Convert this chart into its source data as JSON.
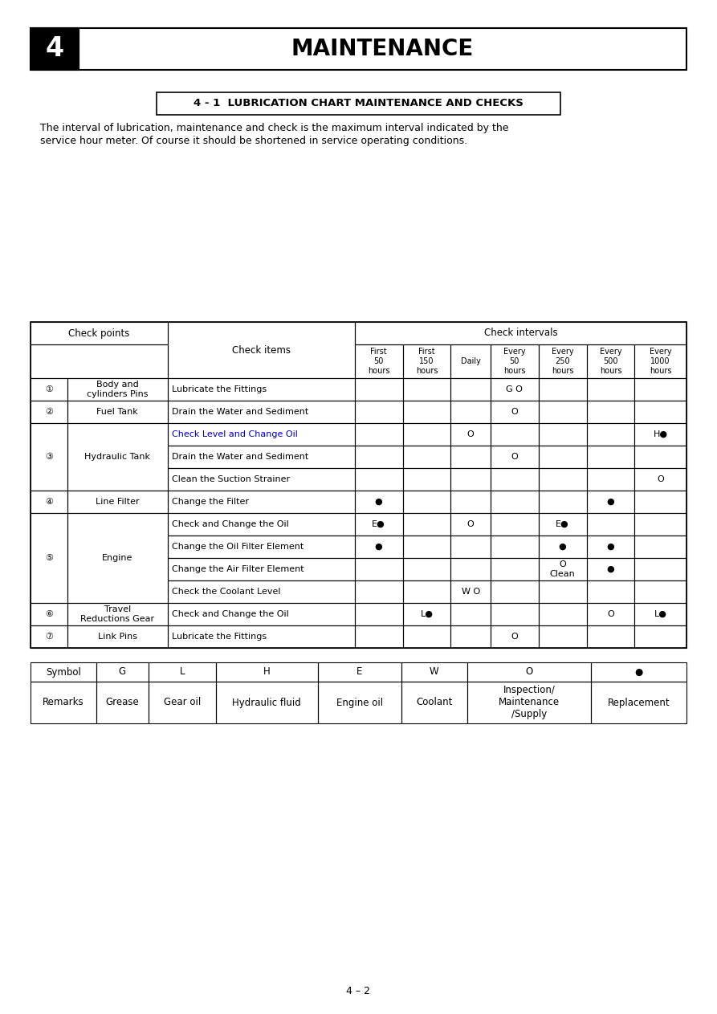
{
  "page_title": "MAINTENANCE",
  "chapter_num": "4",
  "section_title": "4 - 1  LUBRICATION CHART MAINTENANCE AND CHECKS",
  "intro_line1": "The interval of lubrication, maintenance and check is the maximum interval indicated by the",
  "intro_line2": "service hour meter. Of course it should be shortened in service operating conditions.",
  "table_headers": {
    "check_points": "Check points",
    "check_items": "Check items",
    "check_intervals": "Check intervals",
    "intervals": [
      "First\n50\nhours",
      "First\n150\nhours",
      "Daily",
      "Every\n50\nhours",
      "Every\n250\nhours",
      "Every\n500\nhours",
      "Every\n1000\nhours"
    ]
  },
  "table_rows": [
    {
      "num": "①",
      "point": "Body and\ncylinders Pins",
      "point_span": 1,
      "item": "Lubricate the Fittings",
      "item_color": "black",
      "cells": [
        "",
        "",
        "",
        "G O",
        "",
        "",
        ""
      ]
    },
    {
      "num": "②",
      "point": "Fuel Tank",
      "point_span": 1,
      "item": "Drain the Water and Sediment",
      "item_color": "black",
      "cells": [
        "",
        "",
        "",
        "O",
        "",
        "",
        ""
      ]
    },
    {
      "num": "③",
      "point": "Hydraulic Tank",
      "point_span": 3,
      "item": "Check Level and Change Oil",
      "item_color": "blue",
      "cells": [
        "",
        "",
        "O",
        "",
        "",
        "",
        "H●"
      ]
    },
    {
      "num": "",
      "point": "",
      "point_span": 0,
      "item": "Drain the Water and Sediment",
      "item_color": "black",
      "cells": [
        "",
        "",
        "",
        "O",
        "",
        "",
        ""
      ]
    },
    {
      "num": "",
      "point": "",
      "point_span": 0,
      "item": "Clean the Suction Strainer",
      "item_color": "black",
      "cells": [
        "",
        "",
        "",
        "",
        "",
        "",
        "O"
      ]
    },
    {
      "num": "④",
      "point": "Line Filter",
      "point_span": 1,
      "item": "Change the Filter",
      "item_color": "black",
      "cells": [
        "●",
        "",
        "",
        "",
        "",
        "●",
        ""
      ]
    },
    {
      "num": "⑤",
      "point": "Engine",
      "point_span": 4,
      "item": "Check and Change the Oil",
      "item_color": "black",
      "cells": [
        "E●",
        "",
        "O",
        "",
        "E●",
        "",
        ""
      ]
    },
    {
      "num": "",
      "point": "",
      "point_span": 0,
      "item": "Change the Oil Filter Element",
      "item_color": "black",
      "cells": [
        "●",
        "",
        "",
        "",
        "●",
        "●",
        ""
      ]
    },
    {
      "num": "",
      "point": "",
      "point_span": 0,
      "item": "Change the Air Filter Element",
      "item_color": "black",
      "cells": [
        "",
        "",
        "",
        "",
        "O\nClean",
        "●",
        ""
      ]
    },
    {
      "num": "",
      "point": "",
      "point_span": 0,
      "item": "Check the Coolant Level",
      "item_color": "black",
      "cells": [
        "",
        "",
        "W O",
        "",
        "",
        "",
        ""
      ]
    },
    {
      "num": "⑥",
      "point": "Travel\nReductions Gear",
      "point_span": 1,
      "item": "Check and Change the Oil",
      "item_color": "black",
      "cells": [
        "",
        "L●",
        "",
        "",
        "",
        "O",
        "L●"
      ]
    },
    {
      "num": "⑦",
      "point": "Link Pins",
      "point_span": 1,
      "item": "Lubricate the Fittings",
      "item_color": "black",
      "cells": [
        "",
        "",
        "",
        "O",
        "",
        "",
        ""
      ]
    }
  ],
  "merge_groups": [
    [
      0,
      1,
      "①",
      "Body and\ncylinders Pins"
    ],
    [
      1,
      1,
      "②",
      "Fuel Tank"
    ],
    [
      2,
      3,
      "③",
      "Hydraulic Tank"
    ],
    [
      5,
      1,
      "④",
      "Line Filter"
    ],
    [
      6,
      4,
      "⑤",
      "Engine"
    ],
    [
      10,
      1,
      "⑥",
      "Travel\nReductions Gear"
    ],
    [
      11,
      1,
      "⑦",
      "Link Pins"
    ]
  ],
  "symbol_table": {
    "symbols": [
      "Symbol",
      "G",
      "L",
      "H",
      "E",
      "W",
      "O",
      "●"
    ],
    "remarks": [
      "Remarks",
      "Grease",
      "Gear oil",
      "Hydraulic fluid",
      "Engine oil",
      "Coolant",
      "Inspection/\nMaintenance\n/Supply",
      "Replacement"
    ]
  },
  "footer": "4 – 2",
  "bg_color": "#ffffff",
  "blue_color": "#0000bb"
}
